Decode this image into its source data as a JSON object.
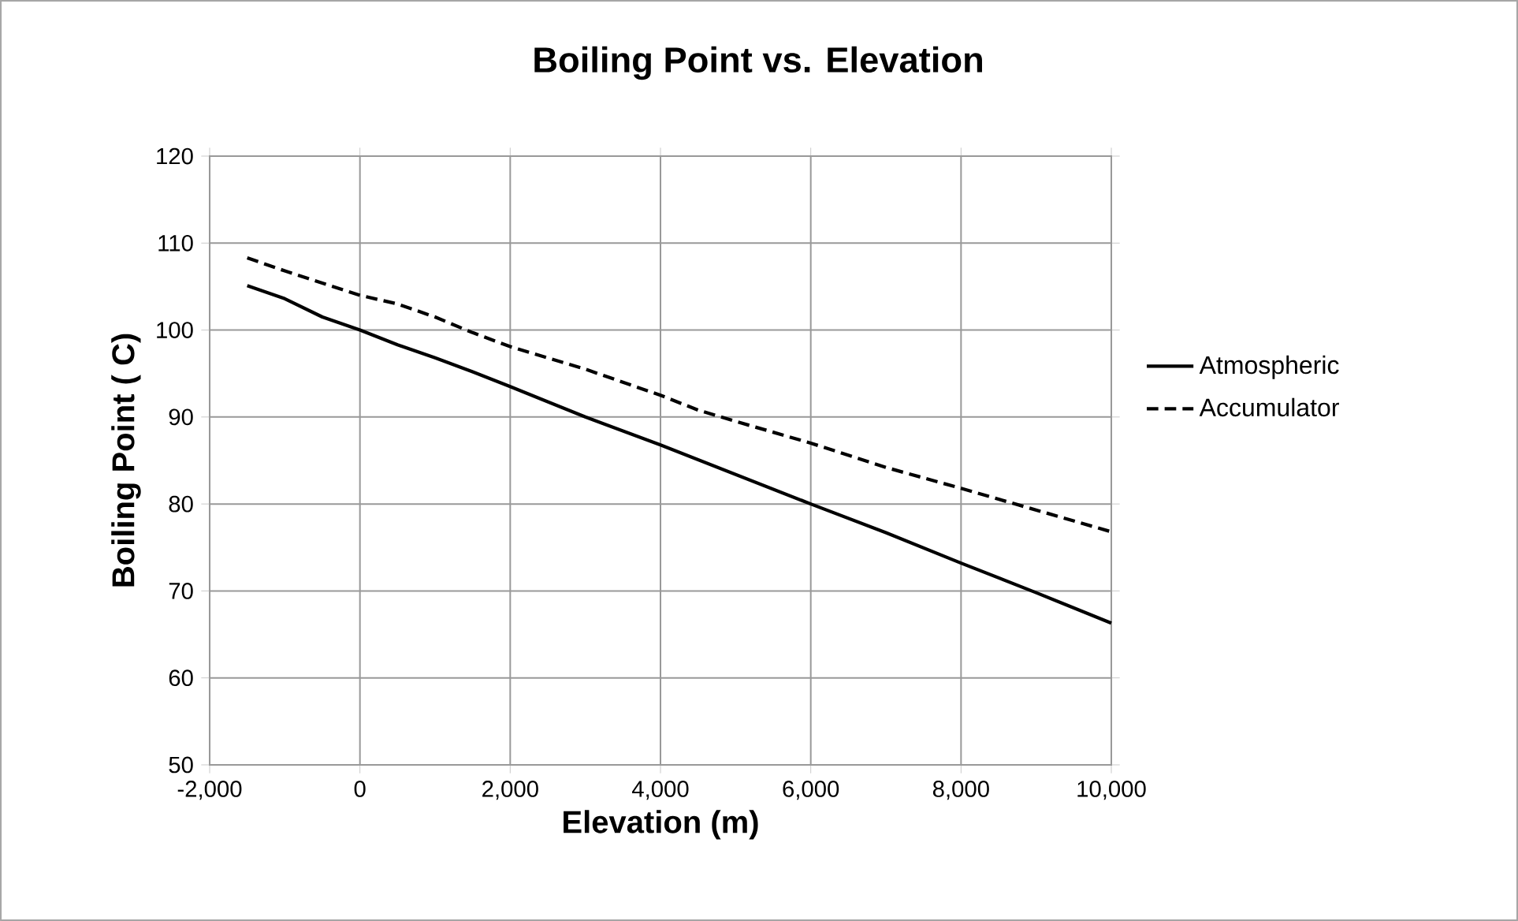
{
  "chart_data": {
    "type": "line",
    "title": "Boiling Point vs. Elevation",
    "xlabel": "Elevation (m)",
    "ylabel": "Boiling Point ( C)",
    "xlim": [
      -2000,
      10000
    ],
    "xticks": [
      {
        "value": -2000,
        "label": "-2,000"
      },
      0,
      {
        "value": 2000,
        "label": "2,000"
      },
      {
        "value": 4000,
        "label": "4,000"
      },
      {
        "value": 6000,
        "label": "6,000"
      },
      {
        "value": 8000,
        "label": "8,000"
      },
      {
        "value": 10000,
        "label": "10,000"
      }
    ],
    "ylim": [
      50,
      120
    ],
    "yticks": [
      50,
      60,
      70,
      80,
      90,
      100,
      110,
      120
    ],
    "grid": true,
    "legend": "right",
    "marker": "none",
    "series": [
      {
        "name": "Atmospheric",
        "color": "#000000",
        "line_style": "solid",
        "x": [
          -1500,
          -1000,
          -500,
          0,
          500,
          1000,
          1500,
          2000,
          3000,
          4000,
          5000,
          6000,
          7000,
          8000,
          9000,
          10000
        ],
        "values": [
          105.1,
          103.6,
          101.5,
          100,
          98.3,
          96.8,
          95.2,
          93.5,
          90,
          86.8,
          83.4,
          80,
          76.7,
          73.2,
          69.8,
          66.3
        ]
      },
      {
        "name": "Accumulator",
        "color": "#000000",
        "line_style": "dashed",
        "x": [
          -1500,
          -1000,
          -500,
          0,
          500,
          1000,
          1500,
          2000,
          2500,
          3000,
          4000,
          4500,
          5000,
          6000,
          7000,
          8000,
          9000,
          10000
        ],
        "values": [
          108.3,
          106.8,
          105.4,
          104,
          103,
          101.5,
          99.7,
          98.1,
          96.8,
          95.5,
          92.5,
          90.8,
          89.5,
          87,
          84.2,
          81.8,
          79.3,
          76.8
        ]
      }
    ]
  }
}
